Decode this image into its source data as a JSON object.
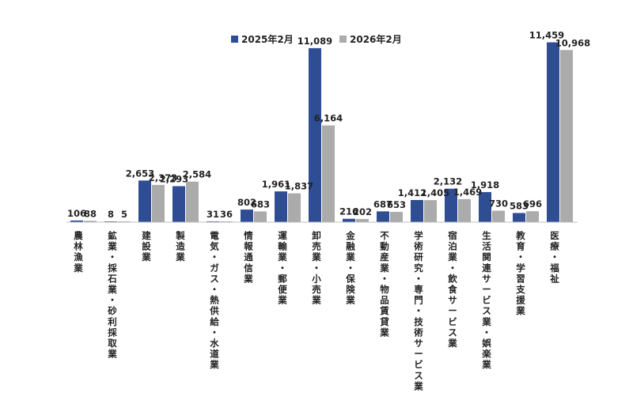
{
  "chart_data": {
    "type": "bar",
    "title": "",
    "xlabel": "",
    "ylabel": "",
    "ylim": [
      0,
      12000
    ],
    "legend_position": "top-center",
    "grid": false,
    "colors": [
      "#2E4D93",
      "#ABABAB"
    ],
    "categories": [
      "農林漁業",
      "鉱業・採石業・砂利採取業",
      "建設業",
      "製造業",
      "電気・ガス・熱供給・水道業",
      "情報通信業",
      "運輸業・郵便業",
      "卸売業・小売業",
      "金融業・保険業",
      "不動産業・物品賃貸業",
      "学術研究・専門・技術サービス業",
      "宿泊業・飲食サービス業",
      "生活関連サービス業・娯楽業",
      "教育・学習支援業",
      "医療・福祉"
    ],
    "series": [
      {
        "name": "2025年2月",
        "values": [
          106,
          8,
          2653,
          2293,
          31,
          802,
          1961,
          11089,
          216,
          687,
          1412,
          2132,
          1918,
          583,
          11459
        ],
        "labels": [
          "106",
          "8",
          "2,653",
          "2,293",
          "31",
          "802",
          "1,961",
          "11,089",
          "216",
          "687",
          "1,412",
          "2,132",
          "1,918",
          "583",
          "11,459"
        ]
      },
      {
        "name": "2026年2月",
        "values": [
          88,
          5,
          2373,
          2584,
          36,
          683,
          1837,
          6164,
          202,
          653,
          1405,
          1469,
          730,
          696,
          10968
        ],
        "labels": [
          "88",
          "5",
          "2,373",
          "2,584",
          "36",
          "683",
          "1,837",
          "6,164",
          "202",
          "653",
          "1,405",
          "1,469",
          "730",
          "696",
          "10,968"
        ]
      }
    ]
  }
}
